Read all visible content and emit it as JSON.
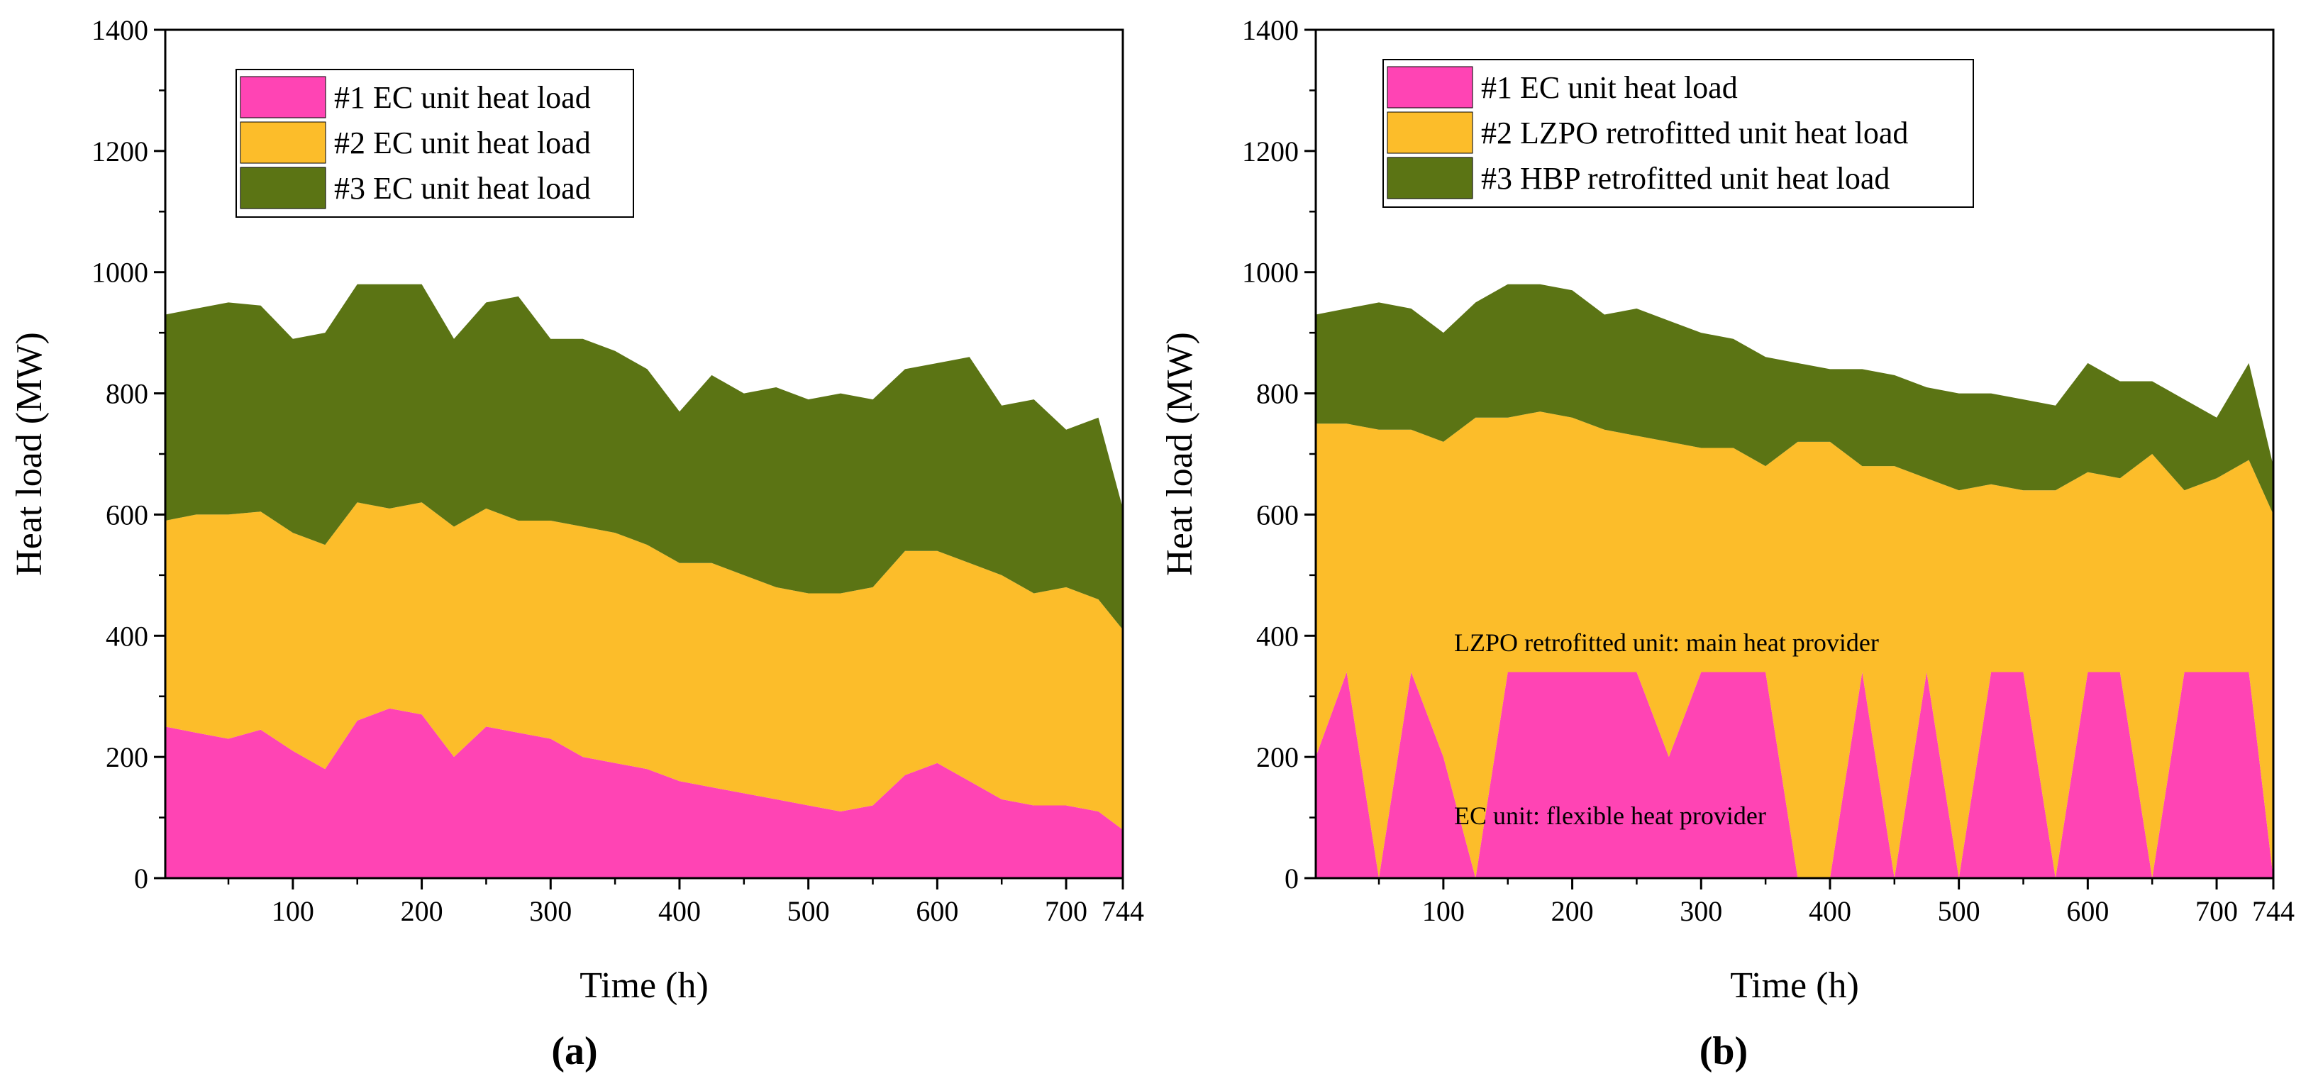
{
  "chart_data": [
    {
      "type": "area",
      "stacked": true,
      "panel_label": "(a)",
      "xlabel": "Time (h)",
      "ylabel": "Heat load (MW)",
      "xlim": [
        1,
        744
      ],
      "ylim": [
        0,
        1400
      ],
      "xticks": [
        100,
        200,
        300,
        400,
        500,
        600,
        700,
        744
      ],
      "yticks": [
        0,
        200,
        400,
        600,
        800,
        1000,
        1200,
        1400
      ],
      "legend_position": "top-left",
      "legend": [
        "#1 EC unit heat load",
        "#2 EC unit heat load",
        "#3 EC unit heat load"
      ],
      "colors": [
        "#ff44b4",
        "#fcbd2a",
        "#5b7414"
      ],
      "x": [
        1,
        25,
        50,
        75,
        100,
        125,
        150,
        175,
        200,
        225,
        250,
        275,
        300,
        325,
        350,
        375,
        400,
        425,
        450,
        475,
        500,
        525,
        550,
        575,
        600,
        625,
        650,
        675,
        700,
        725,
        744
      ],
      "series": [
        {
          "name": "#1 EC unit heat load",
          "values": [
            250,
            240,
            230,
            245,
            210,
            180,
            260,
            280,
            270,
            200,
            250,
            240,
            230,
            200,
            190,
            180,
            160,
            150,
            140,
            130,
            120,
            110,
            120,
            170,
            190,
            160,
            130,
            120,
            120,
            110,
            80
          ]
        },
        {
          "name": "#2 EC unit heat load",
          "values": [
            340,
            360,
            370,
            360,
            360,
            370,
            360,
            330,
            350,
            380,
            360,
            350,
            360,
            380,
            380,
            370,
            360,
            370,
            360,
            350,
            350,
            360,
            360,
            370,
            350,
            360,
            370,
            350,
            360,
            350,
            330
          ]
        },
        {
          "name": "#3 EC unit heat load",
          "values": [
            340,
            340,
            350,
            340,
            320,
            350,
            360,
            370,
            360,
            310,
            340,
            370,
            300,
            310,
            300,
            290,
            250,
            310,
            300,
            330,
            320,
            330,
            310,
            300,
            310,
            340,
            280,
            320,
            260,
            300,
            200
          ]
        }
      ]
    },
    {
      "type": "area",
      "stacked": true,
      "panel_label": "(b)",
      "xlabel": "Time (h)",
      "ylabel": "Heat load (MW)",
      "xlim": [
        1,
        744
      ],
      "ylim": [
        0,
        1400
      ],
      "xticks": [
        100,
        200,
        300,
        400,
        500,
        600,
        700,
        744
      ],
      "yticks": [
        0,
        200,
        400,
        600,
        800,
        1000,
        1200,
        1400
      ],
      "legend_position": "top-left",
      "legend": [
        "#1 EC unit heat load",
        "#2 LZPO retrofitted unit heat load",
        "#3 HBP retrofitted unit heat load"
      ],
      "colors": [
        "#ff44b4",
        "#fcbd2a",
        "#5b7414"
      ],
      "annotations": [
        "LZPO retrofitted unit: main heat provider",
        "EC unit: flexible heat provider"
      ],
      "x": [
        1,
        25,
        50,
        75,
        100,
        125,
        150,
        175,
        200,
        225,
        250,
        275,
        300,
        325,
        350,
        375,
        400,
        425,
        450,
        475,
        500,
        525,
        550,
        575,
        600,
        625,
        650,
        675,
        700,
        725,
        744
      ],
      "series": [
        {
          "name": "#1 EC unit heat load",
          "values": [
            200,
            340,
            0,
            340,
            200,
            0,
            340,
            340,
            340,
            340,
            340,
            200,
            340,
            340,
            340,
            0,
            0,
            340,
            0,
            340,
            0,
            340,
            340,
            0,
            340,
            340,
            0,
            340,
            340,
            340,
            0
          ]
        },
        {
          "name": "#2 LZPO retrofitted unit heat load",
          "values": [
            550,
            410,
            740,
            400,
            520,
            760,
            420,
            430,
            420,
            400,
            390,
            520,
            370,
            370,
            340,
            720,
            720,
            340,
            680,
            320,
            640,
            310,
            300,
            640,
            330,
            320,
            700,
            300,
            320,
            350,
            600
          ]
        },
        {
          "name": "#3 HBP retrofitted unit heat load",
          "values": [
            180,
            190,
            210,
            200,
            180,
            190,
            220,
            210,
            210,
            190,
            210,
            200,
            190,
            180,
            180,
            130,
            120,
            160,
            150,
            150,
            160,
            150,
            150,
            140,
            180,
            160,
            120,
            150,
            100,
            160,
            80
          ]
        }
      ]
    }
  ]
}
